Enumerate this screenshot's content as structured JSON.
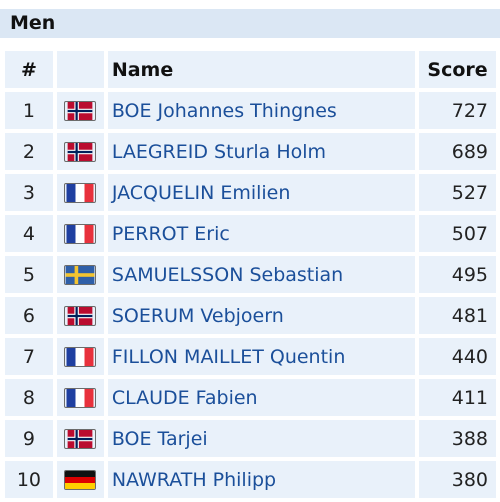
{
  "section": {
    "title": "Men"
  },
  "table": {
    "headers": {
      "rank": "#",
      "flag": "",
      "name": "Name",
      "score": "Score"
    },
    "rows": [
      {
        "rank": "1",
        "country": "norway-flag-icon",
        "name": "BOE Johannes Thingnes",
        "score": "727"
      },
      {
        "rank": "2",
        "country": "norway-flag-icon",
        "name": "LAEGREID Sturla Holm",
        "score": "689"
      },
      {
        "rank": "3",
        "country": "france-flag-icon",
        "name": "JACQUELIN Emilien",
        "score": "527"
      },
      {
        "rank": "4",
        "country": "france-flag-icon",
        "name": "PERROT Eric",
        "score": "507"
      },
      {
        "rank": "5",
        "country": "sweden-flag-icon",
        "name": "SAMUELSSON Sebastian",
        "score": "495"
      },
      {
        "rank": "6",
        "country": "norway-flag-icon",
        "name": "SOERUM Vebjoern",
        "score": "481"
      },
      {
        "rank": "7",
        "country": "france-flag-icon",
        "name": "FILLON MAILLET Quentin",
        "score": "440"
      },
      {
        "rank": "8",
        "country": "france-flag-icon",
        "name": "CLAUDE Fabien",
        "score": "411"
      },
      {
        "rank": "9",
        "country": "norway-flag-icon",
        "name": "BOE Tarjei",
        "score": "388"
      },
      {
        "rank": "10",
        "country": "germany-flag-icon",
        "name": "NAWRATH Philipp",
        "score": "380"
      }
    ]
  },
  "colors": {
    "header_bg": "#dbe7f4",
    "cell_bg": "#e9f1fa",
    "link_text": "#1b4f9a"
  }
}
